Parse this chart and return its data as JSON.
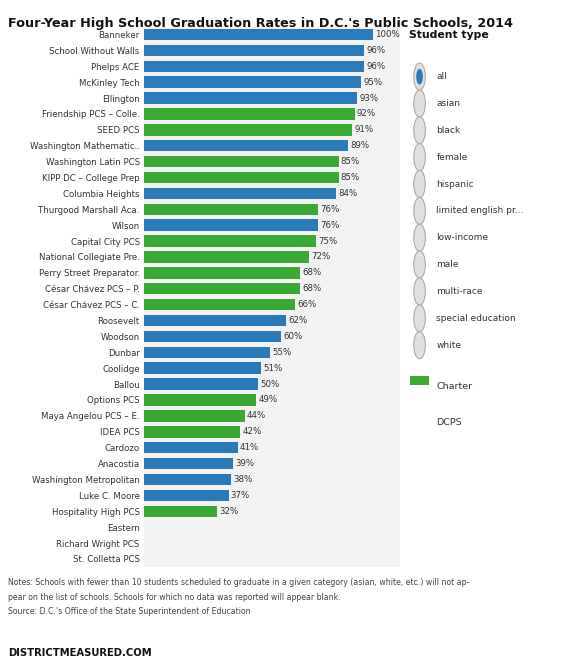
{
  "title": "Four-Year High School Graduation Rates in D.C.'s Public Schools, 2014",
  "schools": [
    {
      "name": "Banneker",
      "value": 100,
      "type": "DCPS"
    },
    {
      "name": "School Without Walls",
      "value": 96,
      "type": "DCPS"
    },
    {
      "name": "Phelps ACE",
      "value": 96,
      "type": "DCPS"
    },
    {
      "name": "McKinley Tech",
      "value": 95,
      "type": "DCPS"
    },
    {
      "name": "Ellington",
      "value": 93,
      "type": "DCPS"
    },
    {
      "name": "Friendship PCS – Colle.",
      "value": 92,
      "type": "Charter"
    },
    {
      "name": "SEED PCS",
      "value": 91,
      "type": "Charter"
    },
    {
      "name": "Washington Mathematic..",
      "value": 89,
      "type": "DCPS"
    },
    {
      "name": "Washington Latin PCS",
      "value": 85,
      "type": "Charter"
    },
    {
      "name": "KIPP DC – College Prep",
      "value": 85,
      "type": "Charter"
    },
    {
      "name": "Columbia Heights",
      "value": 84,
      "type": "DCPS"
    },
    {
      "name": "Thurgood Marshall Aca.",
      "value": 76,
      "type": "Charter"
    },
    {
      "name": "Wilson",
      "value": 76,
      "type": "DCPS"
    },
    {
      "name": "Capital City PCS",
      "value": 75,
      "type": "Charter"
    },
    {
      "name": "National Collegiate Pre.",
      "value": 72,
      "type": "Charter"
    },
    {
      "name": "Perry Street Preparator.",
      "value": 68,
      "type": "Charter"
    },
    {
      "name": "César Chávez PCS – P.",
      "value": 68,
      "type": "Charter"
    },
    {
      "name": "César Chávez PCS – C.",
      "value": 66,
      "type": "Charter"
    },
    {
      "name": "Roosevelt",
      "value": 62,
      "type": "DCPS"
    },
    {
      "name": "Woodson",
      "value": 60,
      "type": "DCPS"
    },
    {
      "name": "Dunbar",
      "value": 55,
      "type": "DCPS"
    },
    {
      "name": "Coolidge",
      "value": 51,
      "type": "DCPS"
    },
    {
      "name": "Ballou",
      "value": 50,
      "type": "DCPS"
    },
    {
      "name": "Options PCS",
      "value": 49,
      "type": "Charter"
    },
    {
      "name": "Maya Angelou PCS – E.",
      "value": 44,
      "type": "Charter"
    },
    {
      "name": "IDEA PCS",
      "value": 42,
      "type": "Charter"
    },
    {
      "name": "Cardozo",
      "value": 41,
      "type": "DCPS"
    },
    {
      "name": "Anacostia",
      "value": 39,
      "type": "DCPS"
    },
    {
      "name": "Washington Metropolitan",
      "value": 38,
      "type": "DCPS"
    },
    {
      "name": "Luke C. Moore",
      "value": 37,
      "type": "DCPS"
    },
    {
      "name": "Hospitality High PCS",
      "value": 32,
      "type": "Charter"
    },
    {
      "name": "Eastern",
      "value": 0,
      "type": "DCPS"
    },
    {
      "name": "Richard Wright PCS",
      "value": 0,
      "type": "Charter"
    },
    {
      "name": "St. Colletta PCS",
      "value": 0,
      "type": "Charter"
    }
  ],
  "charter_color": "#3aaa35",
  "dcps_color": "#2b7bba",
  "student_types": [
    "all",
    "asian",
    "black",
    "female",
    "hispanic",
    "limited english pr...",
    "low-income",
    "male",
    "multi-race",
    "special education",
    "white"
  ],
  "notes_line1": "Notes: Schools with fewer than 10 students scheduled to graduate in a given category (asian, white, etc.) will not ap-",
  "notes_line2": "pear on the list of schools. Schools for which no data was reported will appear blank.",
  "notes_line3": "Source: D.C.'s Office of the State Superintendent of Education",
  "footer": "DISTRICTMEASURED.COM",
  "legend_title": "Student type"
}
